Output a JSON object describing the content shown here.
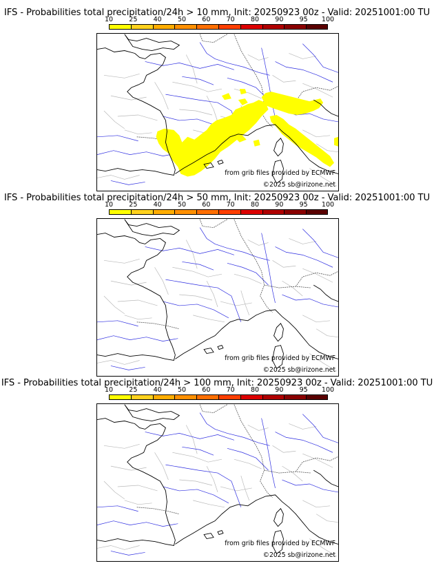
{
  "legend": {
    "ticks": [
      "10",
      "25",
      "40",
      "50",
      "60",
      "70",
      "80",
      "90",
      "95",
      "100"
    ],
    "colors": [
      "#ffff00",
      "#ffd21e",
      "#ffad00",
      "#ff9000",
      "#ff6f00",
      "#ff3f00",
      "#dd0000",
      "#b00000",
      "#8a0000",
      "#5a0000"
    ]
  },
  "panels": [
    {
      "title": "IFS - Probabilities total precipitation/24h > 10 mm, Init: 20250923 00z - Valid: 20251001:00 TU",
      "credit_source": "from grib files provided by ECMWF",
      "credit_copyright": "©2025 sb@irizone.net",
      "has_precip": true
    },
    {
      "title": "IFS - Probabilities total precipitation/24h > 50 mm, Init: 20250923 00z - Valid: 20251001:00 TU",
      "credit_source": "from grib files provided by ECMWF",
      "credit_copyright": "©2025 sb@irizone.net",
      "has_precip": false
    },
    {
      "title": "IFS - Probabilities total precipitation/24h > 100 mm, Init: 20250923 00z - Valid: 20251001:00 TU",
      "credit_source": "from grib files provided by ECMWF",
      "credit_copyright": "©2025 sb@irizone.net",
      "has_precip": false
    }
  ]
}
